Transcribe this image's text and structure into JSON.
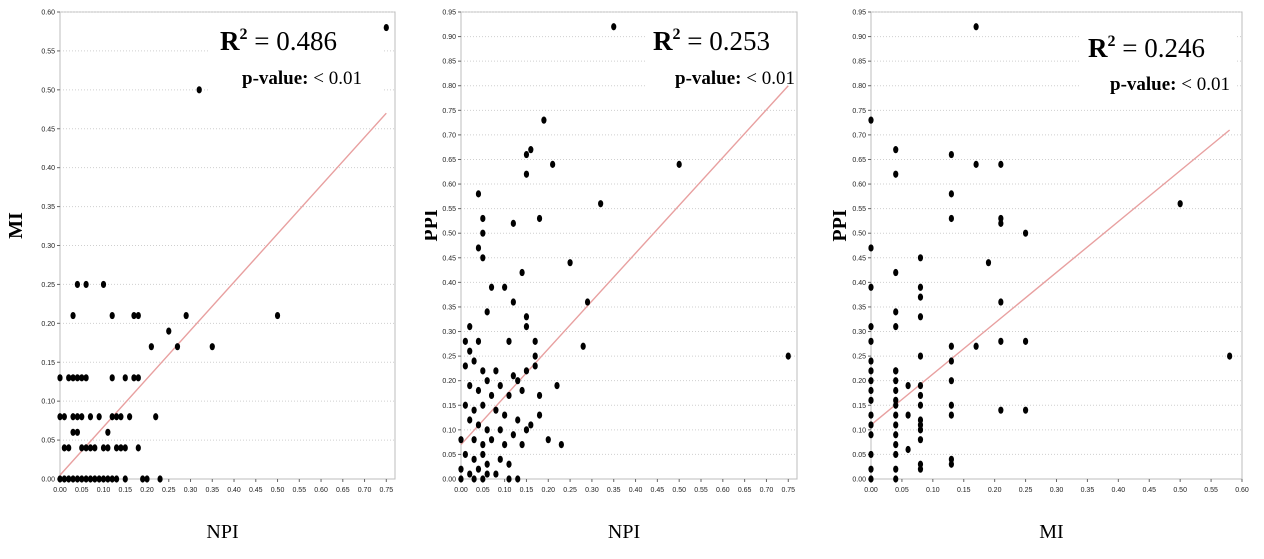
{
  "chart_data": [
    {
      "type": "scatter",
      "title": "",
      "xlabel": "NPI",
      "ylabel": "MI",
      "xlim": [
        0,
        0.77
      ],
      "ylim": [
        0,
        0.6
      ],
      "x_ticks": [
        "0.00",
        "0.05",
        "0.10",
        "0.15",
        "0.20",
        "0.25",
        "0.30",
        "0.35",
        "0.40",
        "0.45",
        "0.50",
        "0.55",
        "0.60",
        "0.65",
        "0.70",
        "0.75"
      ],
      "y_ticks": [
        "0.00",
        "0.05",
        "0.10",
        "0.15",
        "0.20",
        "0.25",
        "0.30",
        "0.35",
        "0.40",
        "0.45",
        "0.50",
        "0.55",
        "0.60"
      ],
      "annotation": {
        "r2_label": "R",
        "r2_sup": "2",
        "r2_value": " = 0.486",
        "p_label": "p-value:",
        "p_value": " < 0.01"
      },
      "trendline": {
        "x": [
          0,
          0.75
        ],
        "y": [
          0.005,
          0.47
        ]
      },
      "grid": "horizontal",
      "point_color": "#000000",
      "trend_color": "#e8a0a0",
      "points": [
        [
          0.75,
          0.58
        ],
        [
          0.32,
          0.5
        ],
        [
          0.5,
          0.21
        ],
        [
          0.35,
          0.17
        ],
        [
          0.29,
          0.21
        ],
        [
          0.27,
          0.17
        ],
        [
          0.25,
          0.19
        ],
        [
          0.21,
          0.17
        ],
        [
          0.22,
          0.08
        ],
        [
          0.18,
          0.21
        ],
        [
          0.17,
          0.21
        ],
        [
          0.17,
          0.13
        ],
        [
          0.15,
          0.13
        ],
        [
          0.18,
          0.13
        ],
        [
          0.12,
          0.21
        ],
        [
          0.1,
          0.25
        ],
        [
          0.06,
          0.25
        ],
        [
          0.04,
          0.25
        ],
        [
          0.03,
          0.21
        ],
        [
          0.12,
          0.13
        ],
        [
          0.0,
          0.13
        ],
        [
          0.02,
          0.13
        ],
        [
          0.03,
          0.13
        ],
        [
          0.04,
          0.13
        ],
        [
          0.05,
          0.13
        ],
        [
          0.06,
          0.13
        ],
        [
          0.03,
          0.06
        ],
        [
          0.04,
          0.06
        ],
        [
          0.0,
          0.08
        ],
        [
          0.01,
          0.08
        ],
        [
          0.03,
          0.08
        ],
        [
          0.04,
          0.08
        ],
        [
          0.05,
          0.08
        ],
        [
          0.07,
          0.08
        ],
        [
          0.09,
          0.08
        ],
        [
          0.12,
          0.08
        ],
        [
          0.13,
          0.08
        ],
        [
          0.14,
          0.08
        ],
        [
          0.16,
          0.08
        ],
        [
          0.11,
          0.06
        ],
        [
          0.01,
          0.04
        ],
        [
          0.02,
          0.04
        ],
        [
          0.05,
          0.04
        ],
        [
          0.06,
          0.04
        ],
        [
          0.07,
          0.04
        ],
        [
          0.08,
          0.04
        ],
        [
          0.1,
          0.04
        ],
        [
          0.11,
          0.04
        ],
        [
          0.13,
          0.04
        ],
        [
          0.14,
          0.04
        ],
        [
          0.15,
          0.04
        ],
        [
          0.18,
          0.04
        ],
        [
          0.0,
          0.0
        ],
        [
          0.01,
          0.0
        ],
        [
          0.02,
          0.0
        ],
        [
          0.03,
          0.0
        ],
        [
          0.04,
          0.0
        ],
        [
          0.05,
          0.0
        ],
        [
          0.06,
          0.0
        ],
        [
          0.07,
          0.0
        ],
        [
          0.08,
          0.0
        ],
        [
          0.09,
          0.0
        ],
        [
          0.1,
          0.0
        ],
        [
          0.11,
          0.0
        ],
        [
          0.12,
          0.0
        ],
        [
          0.13,
          0.0
        ],
        [
          0.15,
          0.0
        ],
        [
          0.19,
          0.0
        ],
        [
          0.2,
          0.0
        ],
        [
          0.23,
          0.0
        ]
      ]
    },
    {
      "type": "scatter",
      "title": "",
      "xlabel": "NPI",
      "ylabel": "PPI",
      "xlim": [
        0,
        0.77
      ],
      "ylim": [
        0,
        0.95
      ],
      "x_ticks": [
        "0.00",
        "0.05",
        "0.10",
        "0.15",
        "0.20",
        "0.25",
        "0.30",
        "0.35",
        "0.40",
        "0.45",
        "0.50",
        "0.55",
        "0.60",
        "0.65",
        "0.70",
        "0.75"
      ],
      "y_ticks": [
        "0.00",
        "0.05",
        "0.10",
        "0.15",
        "0.20",
        "0.25",
        "0.30",
        "0.35",
        "0.40",
        "0.45",
        "0.50",
        "0.55",
        "0.60",
        "0.65",
        "0.70",
        "0.75",
        "0.80",
        "0.85",
        "0.90",
        "0.95"
      ],
      "annotation": {
        "r2_label": "R",
        "r2_sup": "2",
        "r2_value": " = 0.253",
        "p_label": "p-value:",
        "p_value": " < 0.01"
      },
      "trendline": {
        "x": [
          0,
          0.75
        ],
        "y": [
          0.07,
          0.8
        ]
      },
      "grid": "horizontal",
      "point_color": "#000000",
      "trend_color": "#e8a0a0",
      "points": [
        [
          0.35,
          0.92
        ],
        [
          0.19,
          0.73
        ],
        [
          0.15,
          0.66
        ],
        [
          0.16,
          0.67
        ],
        [
          0.15,
          0.62
        ],
        [
          0.21,
          0.64
        ],
        [
          0.5,
          0.64
        ],
        [
          0.04,
          0.58
        ],
        [
          0.32,
          0.56
        ],
        [
          0.05,
          0.53
        ],
        [
          0.12,
          0.52
        ],
        [
          0.18,
          0.53
        ],
        [
          0.05,
          0.5
        ],
        [
          0.04,
          0.47
        ],
        [
          0.05,
          0.45
        ],
        [
          0.25,
          0.44
        ],
        [
          0.14,
          0.42
        ],
        [
          0.07,
          0.39
        ],
        [
          0.1,
          0.39
        ],
        [
          0.12,
          0.36
        ],
        [
          0.29,
          0.36
        ],
        [
          0.06,
          0.34
        ],
        [
          0.15,
          0.33
        ],
        [
          0.15,
          0.31
        ],
        [
          0.02,
          0.31
        ],
        [
          0.01,
          0.28
        ],
        [
          0.04,
          0.28
        ],
        [
          0.11,
          0.28
        ],
        [
          0.17,
          0.28
        ],
        [
          0.17,
          0.25
        ],
        [
          0.28,
          0.27
        ],
        [
          0.75,
          0.25
        ],
        [
          0.01,
          0.23
        ],
        [
          0.05,
          0.22
        ],
        [
          0.08,
          0.22
        ],
        [
          0.12,
          0.21
        ],
        [
          0.15,
          0.22
        ],
        [
          0.17,
          0.23
        ],
        [
          0.06,
          0.2
        ],
        [
          0.09,
          0.19
        ],
        [
          0.13,
          0.2
        ],
        [
          0.02,
          0.19
        ],
        [
          0.04,
          0.18
        ],
        [
          0.07,
          0.17
        ],
        [
          0.11,
          0.17
        ],
        [
          0.14,
          0.18
        ],
        [
          0.18,
          0.17
        ],
        [
          0.22,
          0.19
        ],
        [
          0.01,
          0.15
        ],
        [
          0.03,
          0.14
        ],
        [
          0.05,
          0.15
        ],
        [
          0.08,
          0.14
        ],
        [
          0.1,
          0.13
        ],
        [
          0.13,
          0.12
        ],
        [
          0.16,
          0.11
        ],
        [
          0.18,
          0.13
        ],
        [
          0.02,
          0.12
        ],
        [
          0.04,
          0.11
        ],
        [
          0.06,
          0.1
        ],
        [
          0.09,
          0.1
        ],
        [
          0.12,
          0.09
        ],
        [
          0.15,
          0.1
        ],
        [
          0.0,
          0.08
        ],
        [
          0.03,
          0.08
        ],
        [
          0.05,
          0.07
        ],
        [
          0.07,
          0.08
        ],
        [
          0.1,
          0.07
        ],
        [
          0.14,
          0.07
        ],
        [
          0.2,
          0.08
        ],
        [
          0.23,
          0.07
        ],
        [
          0.01,
          0.05
        ],
        [
          0.03,
          0.04
        ],
        [
          0.05,
          0.05
        ],
        [
          0.06,
          0.03
        ],
        [
          0.09,
          0.04
        ],
        [
          0.11,
          0.03
        ],
        [
          0.0,
          0.02
        ],
        [
          0.02,
          0.01
        ],
        [
          0.04,
          0.02
        ],
        [
          0.06,
          0.01
        ],
        [
          0.08,
          0.01
        ],
        [
          0.11,
          0.0
        ],
        [
          0.13,
          0.0
        ],
        [
          0.0,
          0.0
        ],
        [
          0.03,
          0.0
        ],
        [
          0.05,
          0.0
        ],
        [
          0.02,
          0.26
        ],
        [
          0.03,
          0.24
        ]
      ]
    },
    {
      "type": "scatter",
      "title": "",
      "xlabel": "MI",
      "ylabel": "PPI",
      "xlim": [
        0,
        0.6
      ],
      "ylim": [
        0,
        0.95
      ],
      "x_ticks": [
        "0.00",
        "0.05",
        "0.10",
        "0.15",
        "0.20",
        "0.25",
        "0.30",
        "0.35",
        "0.40",
        "0.45",
        "0.50",
        "0.55",
        "0.60"
      ],
      "y_ticks": [
        "0.00",
        "0.05",
        "0.10",
        "0.15",
        "0.20",
        "0.25",
        "0.30",
        "0.35",
        "0.40",
        "0.45",
        "0.50",
        "0.55",
        "0.60",
        "0.65",
        "0.70",
        "0.75",
        "0.80",
        "0.85",
        "0.90",
        "0.95"
      ],
      "annotation": {
        "r2_label": "R",
        "r2_sup": "2",
        "r2_value": " = 0.246",
        "p_label": "p-value:",
        "p_value": " < 0.01"
      },
      "trendline": {
        "x": [
          0,
          0.58
        ],
        "y": [
          0.11,
          0.71
        ]
      },
      "grid": "horizontal",
      "point_color": "#000000",
      "trend_color": "#e8a0a0",
      "points": [
        [
          0.17,
          0.92
        ],
        [
          0.0,
          0.73
        ],
        [
          0.04,
          0.67
        ],
        [
          0.04,
          0.62
        ],
        [
          0.13,
          0.66
        ],
        [
          0.17,
          0.64
        ],
        [
          0.21,
          0.64
        ],
        [
          0.13,
          0.58
        ],
        [
          0.13,
          0.53
        ],
        [
          0.21,
          0.53
        ],
        [
          0.21,
          0.52
        ],
        [
          0.5,
          0.56
        ],
        [
          0.25,
          0.5
        ],
        [
          0.0,
          0.47
        ],
        [
          0.19,
          0.44
        ],
        [
          0.08,
          0.45
        ],
        [
          0.04,
          0.42
        ],
        [
          0.0,
          0.39
        ],
        [
          0.08,
          0.39
        ],
        [
          0.08,
          0.37
        ],
        [
          0.21,
          0.36
        ],
        [
          0.04,
          0.34
        ],
        [
          0.08,
          0.33
        ],
        [
          0.04,
          0.31
        ],
        [
          0.0,
          0.31
        ],
        [
          0.0,
          0.28
        ],
        [
          0.13,
          0.27
        ],
        [
          0.17,
          0.27
        ],
        [
          0.21,
          0.28
        ],
        [
          0.25,
          0.28
        ],
        [
          0.58,
          0.25
        ],
        [
          0.08,
          0.25
        ],
        [
          0.13,
          0.24
        ],
        [
          0.0,
          0.22
        ],
        [
          0.04,
          0.22
        ],
        [
          0.0,
          0.2
        ],
        [
          0.04,
          0.2
        ],
        [
          0.06,
          0.19
        ],
        [
          0.08,
          0.19
        ],
        [
          0.13,
          0.2
        ],
        [
          0.0,
          0.18
        ],
        [
          0.04,
          0.18
        ],
        [
          0.08,
          0.17
        ],
        [
          0.0,
          0.16
        ],
        [
          0.04,
          0.15
        ],
        [
          0.08,
          0.15
        ],
        [
          0.13,
          0.15
        ],
        [
          0.21,
          0.14
        ],
        [
          0.25,
          0.14
        ],
        [
          0.0,
          0.13
        ],
        [
          0.04,
          0.13
        ],
        [
          0.06,
          0.13
        ],
        [
          0.13,
          0.13
        ],
        [
          0.0,
          0.11
        ],
        [
          0.04,
          0.11
        ],
        [
          0.08,
          0.11
        ],
        [
          0.0,
          0.09
        ],
        [
          0.04,
          0.09
        ],
        [
          0.08,
          0.1
        ],
        [
          0.08,
          0.08
        ],
        [
          0.04,
          0.07
        ],
        [
          0.06,
          0.06
        ],
        [
          0.0,
          0.05
        ],
        [
          0.04,
          0.05
        ],
        [
          0.13,
          0.04
        ],
        [
          0.13,
          0.03
        ],
        [
          0.08,
          0.03
        ],
        [
          0.0,
          0.02
        ],
        [
          0.04,
          0.02
        ],
        [
          0.08,
          0.02
        ],
        [
          0.0,
          0.0
        ],
        [
          0.04,
          0.0
        ],
        [
          0.04,
          0.22
        ],
        [
          0.0,
          0.24
        ],
        [
          0.04,
          0.16
        ],
        [
          0.08,
          0.12
        ]
      ]
    }
  ]
}
